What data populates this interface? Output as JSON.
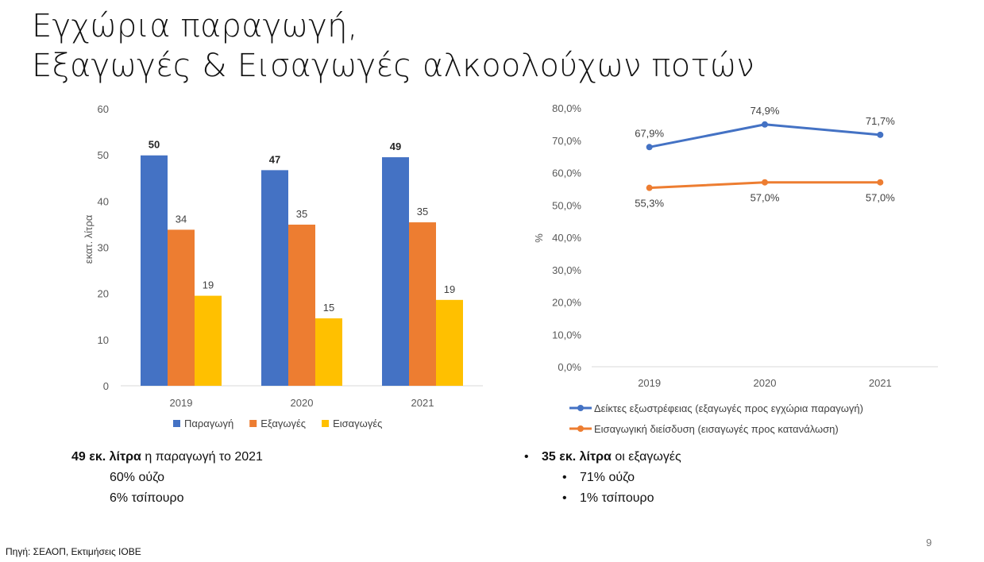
{
  "title": {
    "line1": "Εγχώρια παραγωγή,",
    "line2": "Εξαγωγές & Εισαγωγές αλκοολούχων ποτών"
  },
  "chart_data": [
    {
      "type": "bar",
      "categories": [
        "2019",
        "2020",
        "2021"
      ],
      "series": [
        {
          "name": "Παραγωγή",
          "color": "#4472C4",
          "values": [
            50,
            47,
            49
          ],
          "labels": [
            "50",
            "47",
            "49"
          ],
          "bold_labels": true,
          "plot_values": [
            49.9,
            46.7,
            49.5
          ]
        },
        {
          "name": "Εξαγωγές",
          "color": "#ED7D31",
          "values": [
            34,
            35,
            35
          ],
          "labels": [
            "34",
            "35",
            "35"
          ],
          "bold_labels": false,
          "plot_values": [
            33.8,
            34.9,
            35.4
          ]
        },
        {
          "name": "Εισαγωγές",
          "color": "#FFC000",
          "values": [
            19,
            15,
            19
          ],
          "labels": [
            "19",
            "15",
            "19"
          ],
          "bold_labels": false,
          "plot_values": [
            19.5,
            14.6,
            18.6
          ]
        }
      ],
      "ylabel": "εκατ. λίτρα",
      "ylim": [
        0,
        60
      ],
      "yticks": [
        "0",
        "10",
        "20",
        "30",
        "40",
        "50",
        "60"
      ],
      "grid": false,
      "legend": "bottom"
    },
    {
      "type": "line",
      "categories": [
        "2019",
        "2020",
        "2021"
      ],
      "series": [
        {
          "name": "Δείκτες εξωστρέφειας (εξαγωγές προς εγχώρια παραγωγή)",
          "color": "#4472C4",
          "values": [
            67.9,
            74.9,
            71.7
          ],
          "labels": [
            "67,9%",
            "74,9%",
            "71,7%"
          ],
          "label_position": "above"
        },
        {
          "name": "Εισαγωγική διείσδυση (εισαγωγές προς κατανάλωση)",
          "color": "#ED7D31",
          "values": [
            55.3,
            57.0,
            57.0
          ],
          "labels": [
            "55,3%",
            "57,0%",
            "57,0%"
          ],
          "label_position": "below"
        }
      ],
      "ylabel": "%",
      "ylim": [
        0,
        80
      ],
      "yticks": [
        "0,0%",
        "10,0%",
        "20,0%",
        "30,0%",
        "40,0%",
        "50,0%",
        "60,0%",
        "70,0%",
        "80,0%"
      ],
      "grid": false,
      "legend": "bottom"
    }
  ],
  "notes_left": {
    "line1_bold": "49 εκ. λίτρα",
    "line1_rest": " η παραγωγή το 2021",
    "line2": "60% ούζο",
    "line3": "6% τσίπουρο"
  },
  "notes_right": {
    "bullet": "•",
    "line1_bold": "35 εκ. λίτρα",
    "line1_rest": " οι εξαγωγές",
    "line2": "71% ούζο",
    "line3": "1% τσίπουρο"
  },
  "source": "Πηγή: ΣΕΑΟΠ, Εκτιμήσεις ΙΟΒΕ",
  "page_number": "9"
}
